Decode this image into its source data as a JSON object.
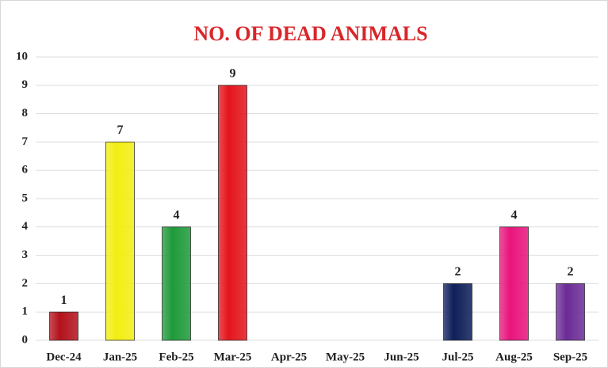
{
  "chart_data": {
    "type": "bar",
    "title": "NO. OF DEAD ANIMALS",
    "categories": [
      "Dec-24",
      "Jan-25",
      "Feb-25",
      "Mar-25",
      "Apr-25",
      "May-25",
      "Jun-25",
      "Jul-25",
      "Aug-25",
      "Sep-25"
    ],
    "values": [
      1,
      7,
      4,
      9,
      null,
      null,
      null,
      2,
      4,
      2
    ],
    "colors": [
      "#b3121b",
      "#f2ee12",
      "#1f9a3a",
      "#e4151c",
      null,
      null,
      null,
      "#0e1f5a",
      "#e8147c",
      "#6b2c96"
    ],
    "ylim": [
      0,
      10
    ],
    "yticks": [
      0,
      1,
      2,
      3,
      4,
      5,
      6,
      7,
      8,
      9,
      10
    ],
    "grid": true
  }
}
